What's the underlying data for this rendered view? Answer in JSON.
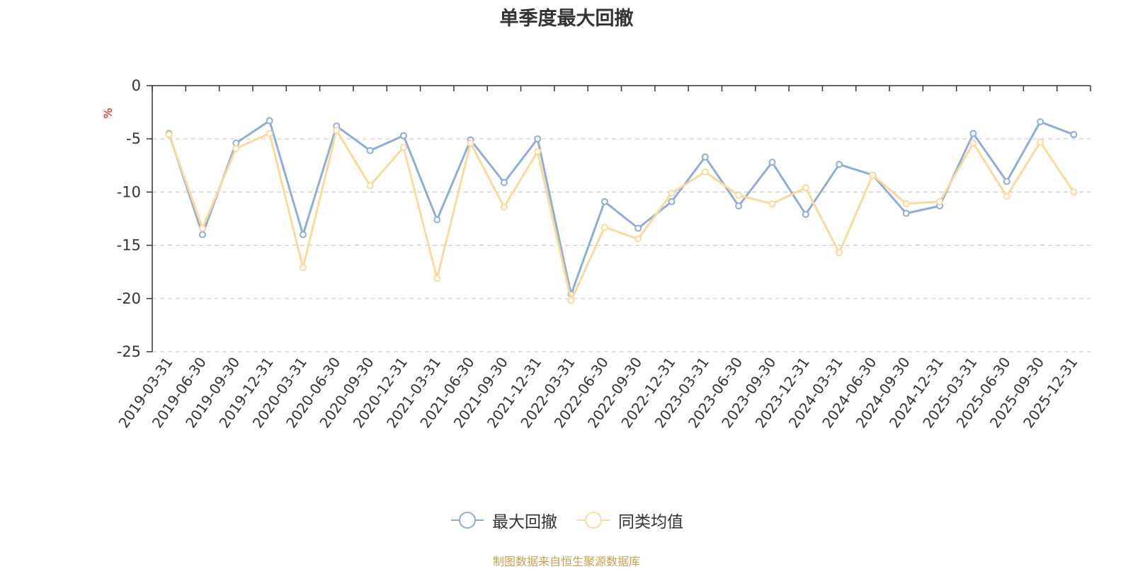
{
  "chart_data": {
    "type": "line",
    "title": "单季度最大回撤",
    "ylabel": "%",
    "ylim": [
      -25,
      0
    ],
    "yticks": [
      0,
      -5,
      -10,
      -15,
      -20,
      -25
    ],
    "grid": true,
    "legend_position": "bottom",
    "categories": [
      "2019-03-31",
      "2019-06-30",
      "2019-09-30",
      "2019-12-31",
      "2020-03-31",
      "2020-06-30",
      "2020-09-30",
      "2020-12-31",
      "2021-03-31",
      "2021-06-30",
      "2021-09-30",
      "2021-12-31",
      "2022-03-31",
      "2022-06-30",
      "2022-09-30",
      "2022-12-31",
      "2023-03-31",
      "2023-06-30",
      "2023-09-30",
      "2023-12-31",
      "2024-03-31",
      "2024-06-30",
      "2024-09-30",
      "2024-12-31",
      "2025-03-31",
      "2025-06-30",
      "2025-09-30",
      "2025-12-31"
    ],
    "series": [
      {
        "name": "最大回撤",
        "color": "#8eadd8",
        "values": [
          -4.5,
          -14.0,
          -5.4,
          -3.3,
          -14.0,
          -3.8,
          -6.1,
          -4.7,
          -12.6,
          -5.1,
          -9.1,
          -5.0,
          -19.6,
          -10.9,
          -13.4,
          -10.9,
          -6.7,
          -11.3,
          -7.2,
          -12.1,
          -7.4,
          -8.4,
          -12.0,
          -11.3,
          -4.5,
          -9.0,
          -3.4,
          -4.6
        ]
      },
      {
        "name": "同类均值",
        "color": "#fbd99a",
        "values": [
          -4.6,
          -13.4,
          -5.9,
          -4.5,
          -17.1,
          -4.2,
          -9.4,
          -5.8,
          -18.1,
          -5.4,
          -11.4,
          -6.2,
          -20.2,
          -13.3,
          -14.4,
          -10.1,
          -8.1,
          -10.3,
          -11.1,
          -9.6,
          -15.7,
          -8.4,
          -11.1,
          -10.9,
          -5.4,
          -10.4,
          -5.3,
          -10.0
        ]
      }
    ]
  },
  "footer": {
    "text": "制图数据来自恒生聚源数据库",
    "color": "#c8a04a"
  }
}
